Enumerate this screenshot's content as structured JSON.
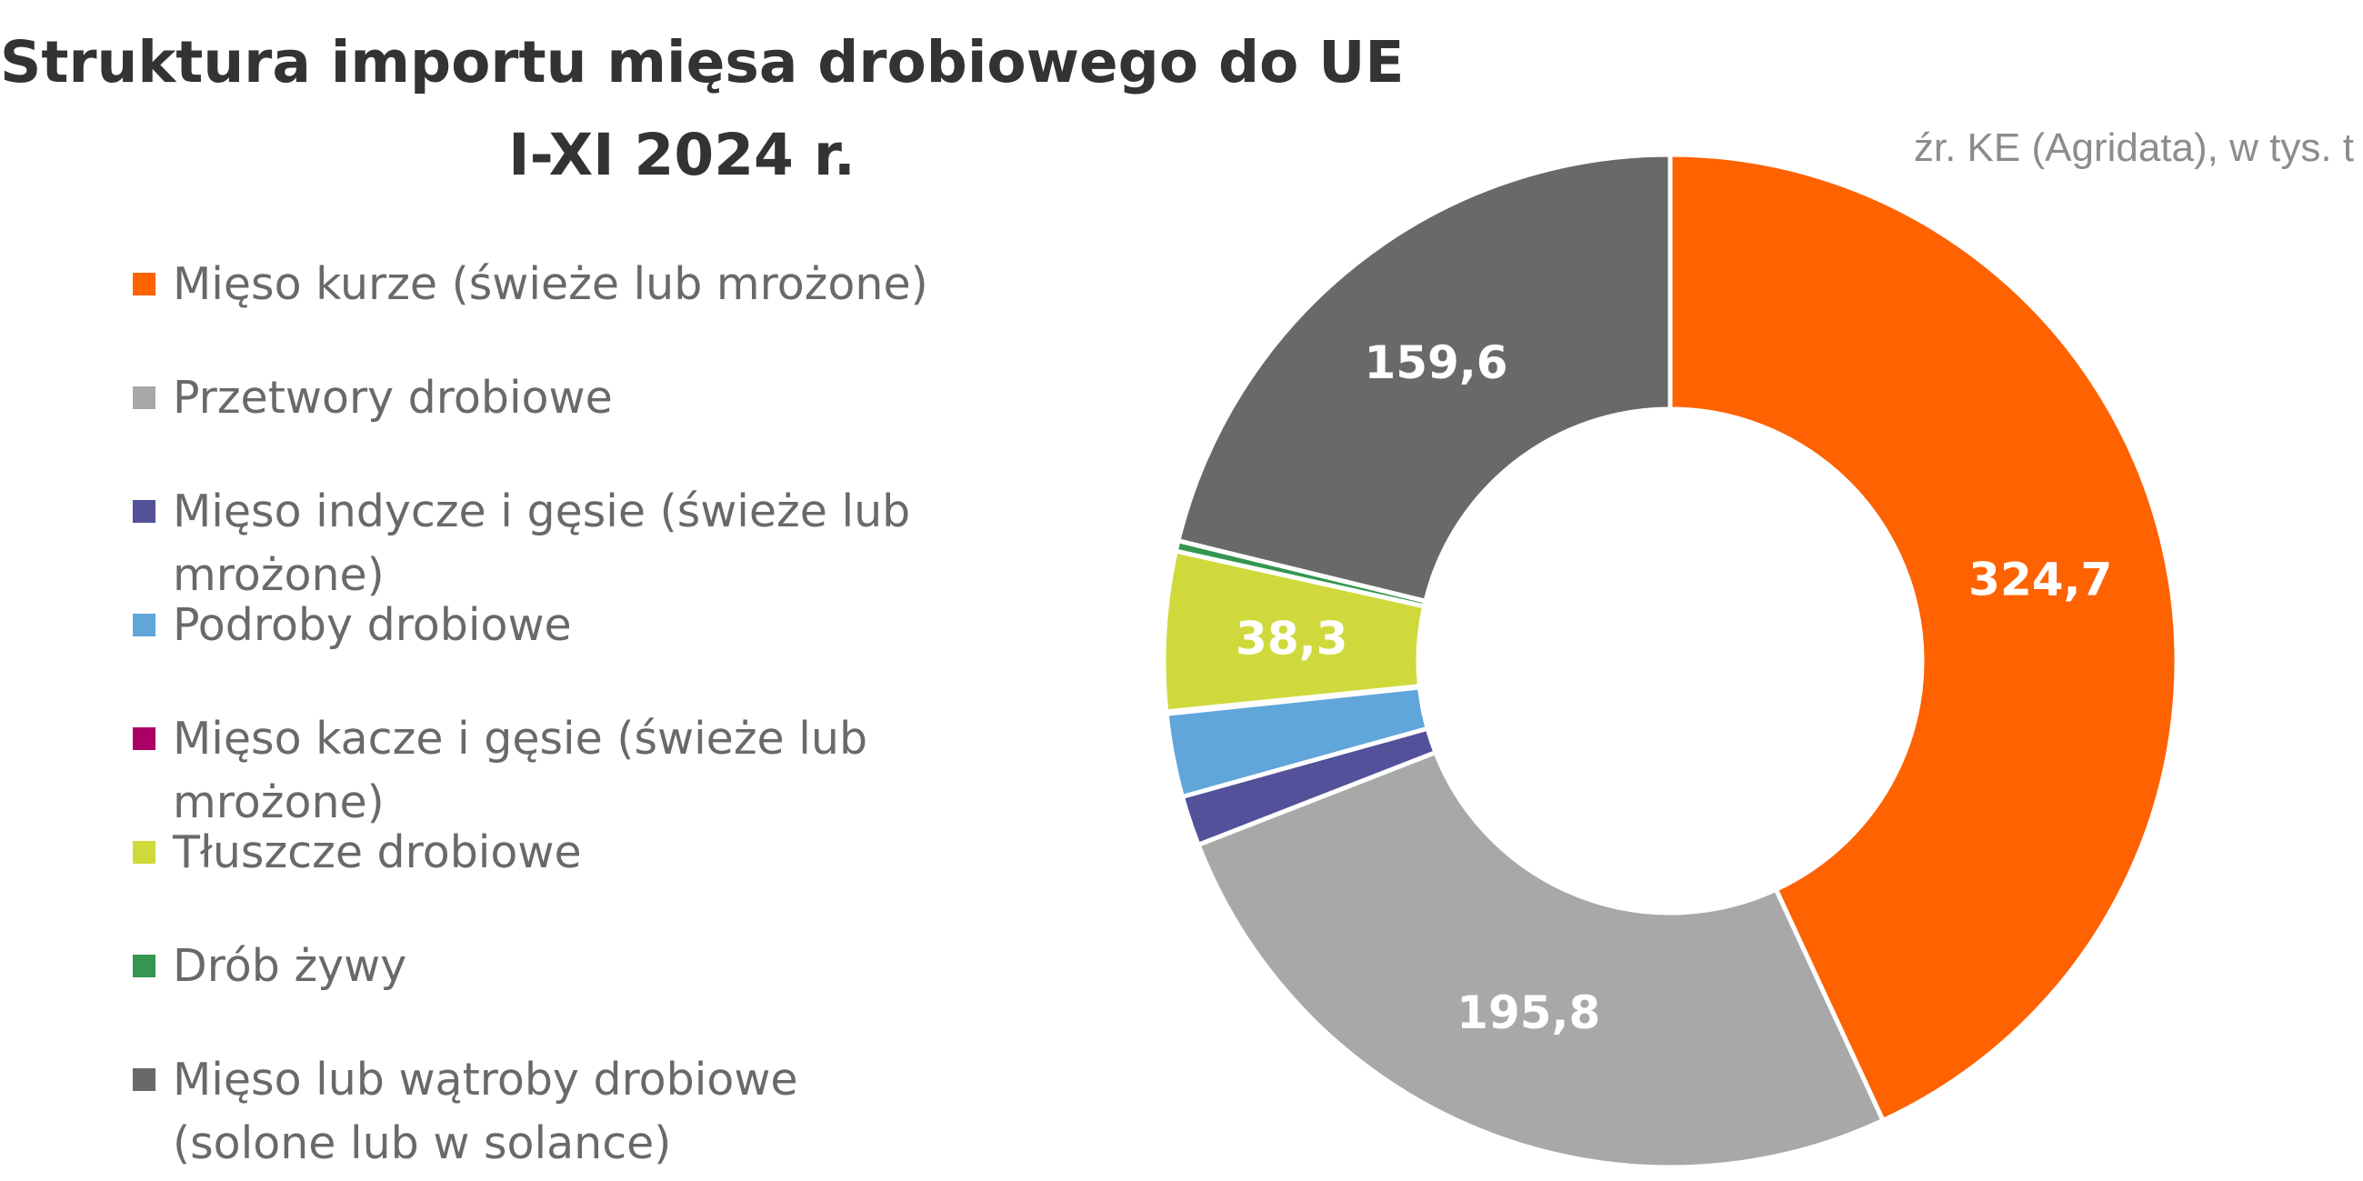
{
  "chart_data": {
    "type": "pie",
    "variant": "donut",
    "title_lines": [
      "Struktura importu mięsa drobiowego do UE",
      "I-XI 2024 r."
    ],
    "source": "źr. KE (Agridata), w tys. t",
    "legend_position": "left",
    "slices": [
      {
        "name": "Mięso kurze (świeże lub mrożone)",
        "value": 324.7,
        "label": "324,7",
        "color": "#FF6200"
      },
      {
        "name": "Przetwory drobiowe",
        "value": 195.8,
        "label": "195,8",
        "color": "#A8A8A8"
      },
      {
        "name": "Mięso indycze i gęsie (świeże lub mrożone)",
        "value": 12.0,
        "label": "",
        "color": "#525199"
      },
      {
        "name": "Podroby drobiowe",
        "value": 20.0,
        "label": "",
        "color": "#60A6DA"
      },
      {
        "name": "Mięso kacze i gęsie (świeże lub mrożone)",
        "value": 0.5,
        "label": "",
        "color": "#AB0066"
      },
      {
        "name": "Tłuszcze drobiowe",
        "value": 38.3,
        "label": "38,3",
        "color": "#D0D93C"
      },
      {
        "name": "Drób żywy",
        "value": 2.5,
        "label": "",
        "color": "#349651"
      },
      {
        "name": "Mięso lub wątroby drobiowe (solone lub w solance)",
        "value": 159.6,
        "label": "159,6",
        "color": "#696969"
      }
    ]
  }
}
